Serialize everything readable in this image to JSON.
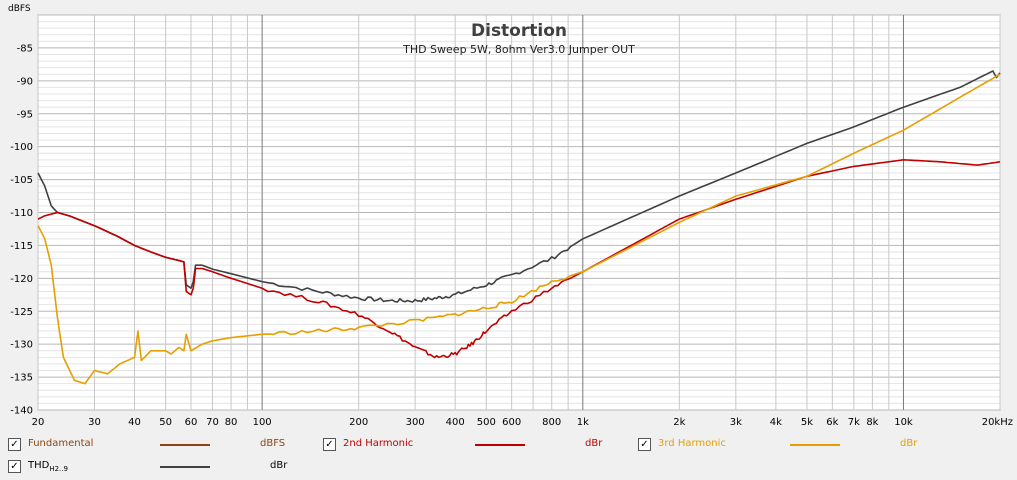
{
  "chart_data": {
    "type": "line",
    "title": "Distortion",
    "subtitle": "THD Sweep 5W, 8ohm Ver3.0 Jumper OUT",
    "ylabel": "dBFS",
    "xlabel": "",
    "x_scale": "log",
    "xlim": [
      20,
      20000
    ],
    "ylim": [
      -140,
      -80
    ],
    "grid": true,
    "x_ticks": [
      20,
      30,
      40,
      50,
      60,
      70,
      80,
      100,
      200,
      300,
      400,
      500,
      600,
      800,
      1000,
      2000,
      3000,
      4000,
      5000,
      6000,
      7000,
      8000,
      10000,
      20000
    ],
    "x_tick_labels": [
      "20",
      "30",
      "40",
      "50",
      "60",
      "70",
      "80",
      "100",
      "200",
      "300",
      "400",
      "500",
      "600",
      "800",
      "1k",
      "2k",
      "3k",
      "4k",
      "5k",
      "6k",
      "7k",
      "8k",
      "10k",
      "20kHz"
    ],
    "y_ticks": [
      -85,
      -90,
      -95,
      -100,
      -105,
      -110,
      -115,
      -120,
      -125,
      -130,
      -135,
      -140
    ],
    "y_tick_labels": [
      "-85",
      "-90",
      "-95",
      "-100",
      "-105",
      "-110",
      "-115",
      "-120",
      "-125",
      "-130",
      "-135",
      "-140"
    ],
    "series": [
      {
        "name": "THD",
        "color": "#404040",
        "points": [
          [
            20,
            -104
          ],
          [
            21,
            -106
          ],
          [
            22,
            -109
          ],
          [
            23,
            -110
          ],
          [
            25,
            -110.5
          ],
          [
            30,
            -112
          ],
          [
            35,
            -113.5
          ],
          [
            40,
            -115
          ],
          [
            45,
            -116
          ],
          [
            50,
            -116.8
          ],
          [
            55,
            -117.3
          ],
          [
            57,
            -117.5
          ],
          [
            58,
            -121
          ],
          [
            60,
            -121.5
          ],
          [
            61,
            -120.5
          ],
          [
            62,
            -118
          ],
          [
            65,
            -118
          ],
          [
            70,
            -118.6
          ],
          [
            80,
            -119.3
          ],
          [
            100,
            -120.5
          ],
          [
            150,
            -122
          ],
          [
            200,
            -123
          ],
          [
            250,
            -123.4
          ],
          [
            300,
            -123.4
          ],
          [
            350,
            -123
          ],
          [
            400,
            -122.5
          ],
          [
            500,
            -121
          ],
          [
            600,
            -119.5
          ],
          [
            800,
            -117
          ],
          [
            1000,
            -114
          ],
          [
            2000,
            -107.5
          ],
          [
            3000,
            -104
          ],
          [
            5000,
            -99.5
          ],
          [
            7000,
            -97
          ],
          [
            10000,
            -94
          ],
          [
            15000,
            -91
          ],
          [
            19000,
            -88.5
          ],
          [
            19500,
            -89.5
          ],
          [
            20000,
            -88.8
          ]
        ]
      },
      {
        "name": "2nd Harmonic",
        "color": "#c00000",
        "points": [
          [
            20,
            -111
          ],
          [
            21,
            -110.5
          ],
          [
            23,
            -110
          ],
          [
            25,
            -110.5
          ],
          [
            30,
            -112
          ],
          [
            35,
            -113.5
          ],
          [
            40,
            -115
          ],
          [
            45,
            -116
          ],
          [
            50,
            -116.8
          ],
          [
            55,
            -117.3
          ],
          [
            57,
            -117.5
          ],
          [
            58,
            -122
          ],
          [
            60,
            -122.5
          ],
          [
            61,
            -121.5
          ],
          [
            62,
            -118.5
          ],
          [
            65,
            -118.5
          ],
          [
            70,
            -119
          ],
          [
            80,
            -120
          ],
          [
            100,
            -121.5
          ],
          [
            150,
            -123.5
          ],
          [
            200,
            -125.5
          ],
          [
            250,
            -128
          ],
          [
            300,
            -130.5
          ],
          [
            350,
            -132
          ],
          [
            400,
            -131.5
          ],
          [
            450,
            -130
          ],
          [
            500,
            -128
          ],
          [
            600,
            -125
          ],
          [
            800,
            -121.5
          ],
          [
            1000,
            -119
          ],
          [
            2000,
            -111
          ],
          [
            3000,
            -108
          ],
          [
            5000,
            -104.5
          ],
          [
            7000,
            -103
          ],
          [
            10000,
            -102
          ],
          [
            13000,
            -102.3
          ],
          [
            17000,
            -102.8
          ],
          [
            20000,
            -102.3
          ]
        ]
      },
      {
        "name": "3rd Harmonic",
        "color": "#e69f00",
        "points": [
          [
            20,
            -112
          ],
          [
            21,
            -114
          ],
          [
            22,
            -118
          ],
          [
            23,
            -126
          ],
          [
            24,
            -132
          ],
          [
            26,
            -135.5
          ],
          [
            28,
            -136
          ],
          [
            30,
            -134
          ],
          [
            33,
            -134.5
          ],
          [
            36,
            -133
          ],
          [
            40,
            -132
          ],
          [
            41,
            -128
          ],
          [
            42,
            -132.5
          ],
          [
            45,
            -131
          ],
          [
            50,
            -131
          ],
          [
            52,
            -131.5
          ],
          [
            55,
            -130.5
          ],
          [
            57,
            -131
          ],
          [
            58,
            -128.5
          ],
          [
            60,
            -131
          ],
          [
            65,
            -130
          ],
          [
            70,
            -129.5
          ],
          [
            80,
            -129
          ],
          [
            100,
            -128.5
          ],
          [
            150,
            -128
          ],
          [
            200,
            -127.5
          ],
          [
            300,
            -126.5
          ],
          [
            400,
            -125.5
          ],
          [
            500,
            -124.5
          ],
          [
            600,
            -123.5
          ],
          [
            800,
            -120.5
          ],
          [
            1000,
            -119
          ],
          [
            2000,
            -111.5
          ],
          [
            3000,
            -107.5
          ],
          [
            5000,
            -104.5
          ],
          [
            7000,
            -101
          ],
          [
            10000,
            -97.5
          ],
          [
            15000,
            -92.5
          ],
          [
            20000,
            -89
          ]
        ]
      }
    ]
  },
  "legend": [
    {
      "name": "Fundamental",
      "unit": "dBFS",
      "color": "#8b4513",
      "checked": true,
      "text_color": "#8b4513"
    },
    {
      "name": "2nd Harmonic",
      "unit": "dBr",
      "color": "#c00000",
      "checked": true,
      "text_color": "#c00000"
    },
    {
      "name": "3rd Harmonic",
      "unit": "dBr",
      "color": "#e69f00",
      "checked": true,
      "text_color": "#e69f00"
    },
    {
      "name": "THD",
      "name_sub": "H2..9",
      "unit": "dBr",
      "color": "#404040",
      "checked": true,
      "text_color": "#000000"
    }
  ]
}
